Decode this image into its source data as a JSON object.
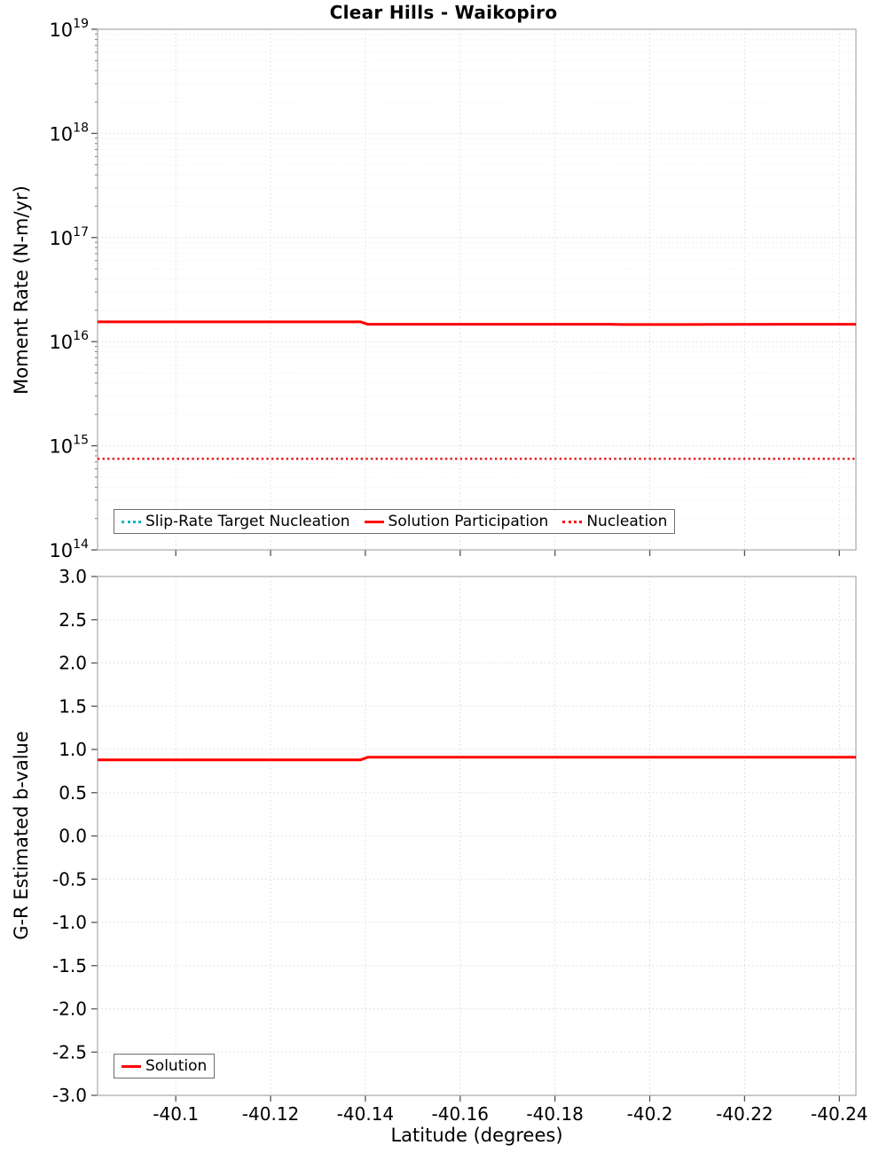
{
  "title": "Clear Hills - Waikopiro",
  "chart_data": [
    {
      "type": "line",
      "title": "Clear Hills - Waikopiro",
      "ylabel": "Moment Rate (N-m/yr)",
      "yscale": "log",
      "ylim": [
        100000000000000.0,
        1e+19
      ],
      "xlim": [
        -40.0835,
        -40.2435
      ],
      "x_reversed": true,
      "grid": true,
      "xticks": [
        -40.1,
        -40.12,
        -40.14,
        -40.16,
        -40.18,
        -40.2,
        -40.22,
        -40.24
      ],
      "xtick_labels": [
        "-40.1",
        "-40.12",
        "-40.14",
        "-40.16",
        "-40.18",
        "-40.2",
        "-40.22",
        "-40.24"
      ],
      "ytick_exponents": [
        14,
        15,
        16,
        17,
        18,
        19
      ],
      "legend_position": "bottom-left-inside",
      "series": [
        {
          "name": "Slip-Rate Target Nucleation",
          "color": "#00b4c3",
          "style": "dotted",
          "x": [
            -40.0835,
            -40.2435
          ],
          "y": [
            750000000000000.0,
            750000000000000.0
          ]
        },
        {
          "name": "Solution Participation",
          "color": "#ff0000",
          "style": "solid",
          "x": [
            -40.0835,
            -40.139,
            -40.1405,
            -40.192,
            -40.1935,
            -40.2435
          ],
          "y": [
            1.55e+16,
            1.55e+16,
            1.47e+16,
            1.47e+16,
            1.46e+16,
            1.47e+16
          ]
        },
        {
          "name": "Nucleation",
          "color": "#ff0000",
          "style": "dotted",
          "x": [
            -40.0835,
            -40.2435
          ],
          "y": [
            750000000000000.0,
            750000000000000.0
          ]
        }
      ]
    },
    {
      "type": "line",
      "ylabel": "G-R Estimated b-value",
      "xlabel": "Latitude (degrees)",
      "yscale": "linear",
      "ylim": [
        -3.0,
        3.0
      ],
      "ytick_step": 0.5,
      "xlim": [
        -40.0835,
        -40.2435
      ],
      "x_reversed": true,
      "grid": true,
      "xticks": [
        -40.1,
        -40.12,
        -40.14,
        -40.16,
        -40.18,
        -40.2,
        -40.22,
        -40.24
      ],
      "xtick_labels": [
        "-40.1",
        "-40.12",
        "-40.14",
        "-40.16",
        "-40.18",
        "-40.2",
        "-40.22",
        "-40.24"
      ],
      "legend_position": "bottom-left-inside",
      "series": [
        {
          "name": "Solution",
          "color": "#ff0000",
          "style": "solid",
          "x": [
            -40.0835,
            -40.139,
            -40.1405,
            -40.2435
          ],
          "y": [
            0.88,
            0.88,
            0.91,
            0.91
          ]
        }
      ]
    }
  ]
}
